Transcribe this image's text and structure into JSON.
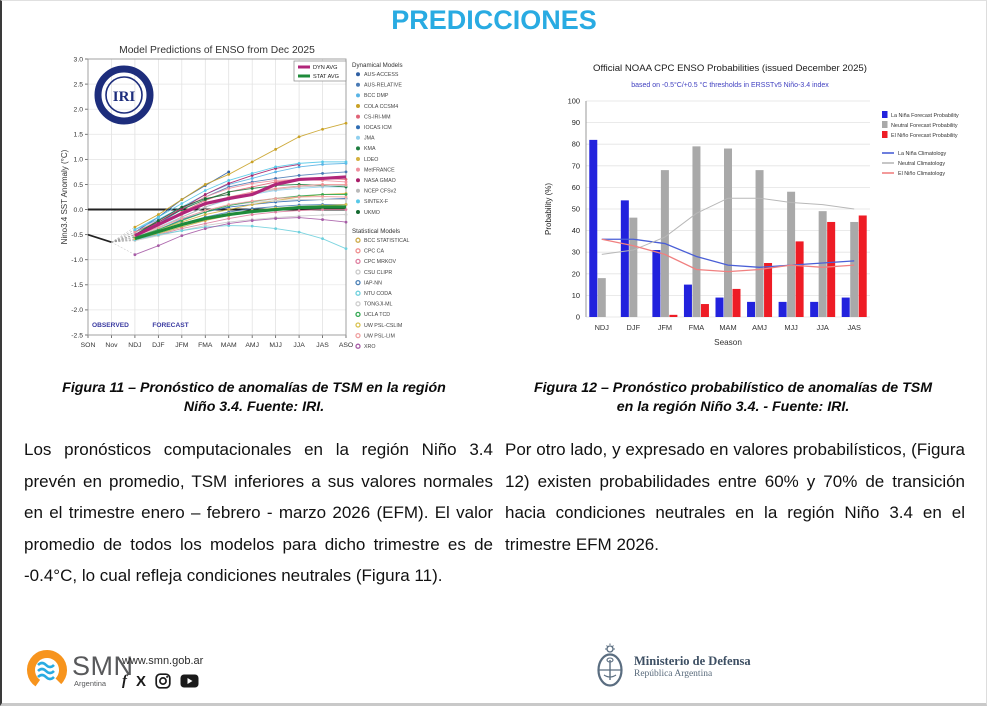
{
  "page": {
    "title": "PREDICCIONES"
  },
  "figures": {
    "left_caption_line1": "Figura 11 – Pronóstico de anomalías de TSM en la región",
    "left_caption_line2": "Niño 3.4. Fuente: IRI.",
    "right_caption_line1": "Figura 12 – Pronóstico probabilístico de anomalías de TSM",
    "right_caption_line2": "en la región Niño 3.4. - Fuente: IRI."
  },
  "paragraphs": {
    "left": "Los pronósticos computacionales en la región Niño 3.4 prevén en promedio, TSM inferiores a sus valores normales en el trimestre enero – febrero - marzo 2026 (EFM). El valor promedio de todos los modelos para dicho trimestre es de -0.4°C, lo cual refleja condiciones neutrales (Figura 11).",
    "right": "Por otro lado, y expresado en valores probabilísticos, (Figura 12) existen probabilidades entre 60% y 70% de transición hacia condiciones neutrales en la región Niño 3.4 en el trimestre EFM 2026."
  },
  "footer": {
    "smn_name": "SMN",
    "smn_sub": "Argentina",
    "website": "www.smn.gob.ar",
    "icon_glyphs": {
      "facebook": "f",
      "x": "X"
    },
    "ministry_name": "Ministerio de Defensa",
    "ministry_sub": "República Argentina"
  },
  "chart_data": [
    {
      "type": "line",
      "title": "Model Predictions of ENSO from Dec 2025",
      "ylabel": "Nino3.4 SST Anomaly (°C)",
      "ylim": [
        -2.5,
        3.0
      ],
      "yticks": [
        3.0,
        2.5,
        2.0,
        1.5,
        1.0,
        0.5,
        0.0,
        -0.5,
        -1.0,
        -1.5,
        -2.0,
        -2.5
      ],
      "x": [
        "SON",
        "Nov",
        "NDJ",
        "DJF",
        "JFM",
        "FMA",
        "MAM",
        "AMJ",
        "MJJ",
        "JJA",
        "JAS",
        "ASO"
      ],
      "annotations": [
        "OBSERVED",
        "FORECAST"
      ],
      "logo_text": "IRI",
      "observed": {
        "name": "OBSERVED",
        "color": "#222222",
        "values": [
          -0.5,
          -0.65
        ]
      },
      "averages": [
        {
          "name": "DYN AVG",
          "color": "#b02579",
          "values": [
            -0.52,
            -0.3,
            -0.08,
            0.12,
            0.22,
            0.3,
            0.5,
            0.6,
            0.62,
            0.65
          ]
        },
        {
          "name": "STAT AVG",
          "color": "#1e8b3a",
          "values": [
            -0.58,
            -0.44,
            -0.3,
            -0.18,
            -0.1,
            -0.04,
            0.0,
            0.04,
            0.05,
            0.05
          ]
        }
      ],
      "dynamical_header": "Dynamical Models",
      "statistical_header": "Statistical Models",
      "dynamical_models": [
        {
          "name": "AUS-ACCESS",
          "color": "#2e5fa3",
          "values": [
            -0.45,
            -0.15,
            0.2,
            0.48,
            0.75,
            null,
            null,
            null,
            null,
            null
          ]
        },
        {
          "name": "AUS-RELATIVE",
          "color": "#4a7ab5",
          "values": [
            -0.5,
            -0.28,
            0.0,
            0.25,
            0.45,
            0.55,
            0.62,
            0.68,
            0.72,
            0.75
          ]
        },
        {
          "name": "BCC DMP",
          "color": "#5ab4e5",
          "values": [
            -0.4,
            -0.2,
            0.05,
            0.3,
            0.5,
            0.62,
            0.75,
            0.85,
            0.9,
            0.92
          ]
        },
        {
          "name": "COLA CCSM4",
          "color": "#c9a227",
          "values": [
            -0.35,
            -0.1,
            0.2,
            0.5,
            0.7,
            0.95,
            1.2,
            1.45,
            1.6,
            1.72
          ]
        },
        {
          "name": "CS-IRI-MM",
          "color": "#e06377",
          "values": [
            -0.5,
            -0.3,
            -0.05,
            0.18,
            0.35,
            0.45,
            0.55,
            0.6,
            0.62,
            0.6
          ]
        },
        {
          "name": "IOCAS ICM",
          "color": "#2f6db3",
          "values": [
            -0.55,
            -0.4,
            -0.2,
            -0.05,
            0.05,
            0.1,
            0.15,
            0.18,
            0.2,
            0.22
          ]
        },
        {
          "name": "JMA",
          "color": "#8fd0ef",
          "values": [
            -0.5,
            -0.35,
            -0.15,
            0.05,
            0.2,
            0.3,
            0.38,
            0.42,
            0.45,
            0.45
          ]
        },
        {
          "name": "KMA",
          "color": "#1e7d3e",
          "values": [
            -0.45,
            -0.25,
            0.0,
            0.2,
            0.35,
            0.42,
            0.48,
            0.5,
            0.48,
            0.45
          ]
        },
        {
          "name": "LDEO",
          "color": "#d4b13f",
          "values": [
            -0.55,
            -0.4,
            -0.25,
            -0.1,
            0.0,
            0.1,
            0.18,
            0.25,
            0.3,
            0.32
          ]
        },
        {
          "name": "MetFRANCE",
          "color": "#ef8f9d",
          "values": [
            -0.45,
            -0.22,
            0.02,
            0.25,
            0.42,
            0.52,
            0.58,
            0.6,
            0.58,
            0.55
          ]
        },
        {
          "name": "NASA GMAO",
          "color": "#a81e68",
          "values": [
            -0.5,
            -0.25,
            0.02,
            0.3,
            0.52,
            0.68,
            0.82,
            0.9,
            null,
            null
          ]
        },
        {
          "name": "NCEP CFSv2",
          "color": "#b9b9b9",
          "values": [
            -0.55,
            -0.38,
            -0.15,
            0.05,
            0.22,
            0.32,
            0.4,
            0.45,
            0.47,
            0.48
          ]
        },
        {
          "name": "SINTEX-F",
          "color": "#57c8e8",
          "values": [
            -0.4,
            -0.15,
            0.12,
            0.38,
            0.58,
            0.72,
            0.85,
            0.92,
            0.95,
            0.95
          ]
        },
        {
          "name": "UKMO",
          "color": "#146a30",
          "values": [
            -0.5,
            -0.22,
            0.05,
            0.22,
            0.3,
            null,
            null,
            null,
            null,
            null
          ]
        }
      ],
      "statistical_models": [
        {
          "name": "BCC STATISTICAL",
          "color": "#cdab4a",
          "values": [
            -0.6,
            -0.48,
            -0.35,
            -0.22,
            -0.12,
            -0.05,
            0.0,
            0.05,
            0.08,
            0.1
          ]
        },
        {
          "name": "CPC CA",
          "color": "#ef9090",
          "values": [
            -0.5,
            -0.32,
            -0.1,
            0.1,
            0.25,
            0.35,
            0.42,
            0.47,
            0.5,
            0.5
          ]
        },
        {
          "name": "CPC MRKOV",
          "color": "#de7fa0",
          "values": [
            -0.6,
            -0.5,
            -0.38,
            -0.28,
            -0.18,
            -0.1,
            -0.05,
            -0.02,
            0.0,
            0.0
          ]
        },
        {
          "name": "CSU CLIPR",
          "color": "#c9c9c9",
          "values": [
            -0.62,
            -0.52,
            -0.42,
            -0.32,
            -0.25,
            -0.2,
            -0.16,
            -0.13,
            -0.11,
            -0.1
          ]
        },
        {
          "name": "IAP-NN",
          "color": "#4a7fb5",
          "values": [
            -0.55,
            -0.42,
            -0.28,
            -0.15,
            -0.05,
            0.02,
            0.06,
            0.09,
            0.1,
            0.1
          ]
        },
        {
          "name": "NTU CODA",
          "color": "#6fd0dd",
          "values": [
            -0.6,
            -0.5,
            -0.42,
            -0.35,
            -0.32,
            -0.33,
            -0.38,
            -0.45,
            -0.58,
            -0.78
          ]
        },
        {
          "name": "TONGJI-ML",
          "color": "#cfcfcf",
          "values": [
            -0.5,
            -0.35,
            -0.18,
            -0.02,
            0.08,
            0.14,
            0.18,
            0.2,
            0.2,
            0.2
          ]
        },
        {
          "name": "UCLA TCD",
          "color": "#34a853",
          "values": [
            -0.55,
            -0.4,
            -0.22,
            -0.05,
            0.08,
            0.16,
            0.22,
            0.27,
            0.3,
            0.3
          ]
        },
        {
          "name": "UW PSL-CSLIM",
          "color": "#d9c24f",
          "values": [
            -0.58,
            -0.45,
            -0.3,
            -0.18,
            -0.08,
            -0.02,
            0.03,
            0.06,
            0.08,
            0.1
          ]
        },
        {
          "name": "UW PSL-LIM",
          "color": "#ef9f9f",
          "values": [
            -0.52,
            -0.36,
            -0.18,
            -0.02,
            0.1,
            0.17,
            0.22,
            0.25,
            0.26,
            0.25
          ]
        },
        {
          "name": "XRO",
          "color": "#a65ba6",
          "values": [
            -0.9,
            -0.72,
            -0.52,
            -0.38,
            -0.28,
            -0.22,
            -0.18,
            -0.16,
            -0.2,
            -0.25
          ]
        }
      ]
    },
    {
      "type": "bar",
      "title": "Official NOAA CPC ENSO Probabilities (issued December 2025)",
      "subtitle": "based on -0.5°C/+0.5 °C thresholds in ERSSTv5 Niño-3.4 index",
      "xlabel": "Season",
      "ylabel": "Probability (%)",
      "ylim": [
        0,
        100
      ],
      "yticks": [
        0,
        10,
        20,
        30,
        40,
        50,
        60,
        70,
        80,
        90,
        100
      ],
      "categories": [
        "NDJ",
        "DJF",
        "JFM",
        "FMA",
        "MAM",
        "AMJ",
        "MJJ",
        "JJA",
        "JAS"
      ],
      "series": [
        {
          "name": "La Niña Forecast Probability",
          "color": "#2222dd",
          "values": [
            82,
            54,
            31,
            15,
            9,
            7,
            7,
            7,
            9
          ]
        },
        {
          "name": "Neutral Forecast Probability",
          "color": "#a9a9a9",
          "values": [
            18,
            46,
            68,
            79,
            78,
            68,
            58,
            49,
            44
          ]
        },
        {
          "name": "El Niño Forecast Probability",
          "color": "#ee1c25",
          "values": [
            0,
            0,
            1,
            6,
            13,
            25,
            35,
            44,
            47
          ]
        }
      ],
      "lines": [
        {
          "name": "La Niña Climatology",
          "color": "#4a5fd6",
          "values": [
            36,
            36,
            34,
            28,
            24,
            23,
            24,
            25,
            26
          ]
        },
        {
          "name": "Neutral Climatology",
          "color": "#b8b8b8",
          "values": [
            29,
            31,
            37,
            48,
            55,
            55,
            53,
            52,
            50
          ]
        },
        {
          "name": "El Niño Climatology",
          "color": "#f08080",
          "values": [
            36,
            33,
            29,
            22,
            21,
            22,
            24,
            23,
            24
          ]
        }
      ]
    }
  ]
}
